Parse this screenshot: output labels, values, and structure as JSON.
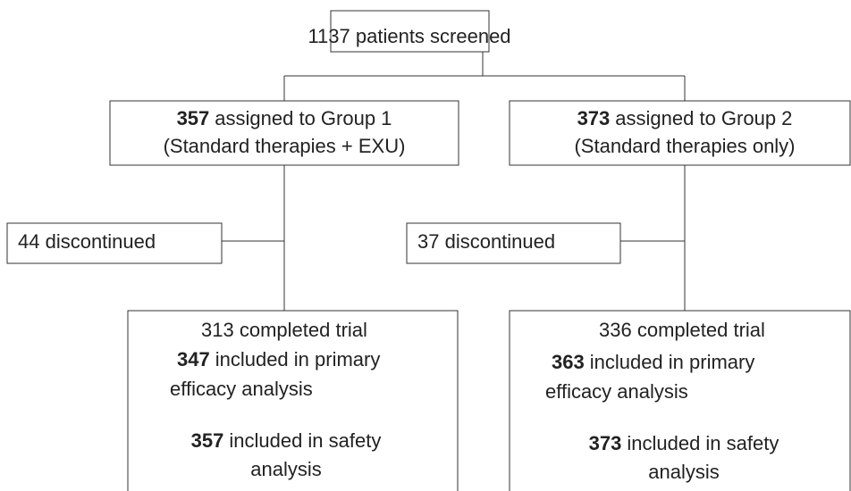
{
  "nodes": [
    {
      "label": "1137 patients screened"
    },
    {
      "lines": [
        {
          "bold": "357",
          "text": "assigned to Group 1"
        },
        {
          "text": "(Standard therapies + EXU)"
        }
      ]
    },
    {
      "lines": [
        {
          "bold": "373",
          "text": "assigned to Group 2"
        },
        {
          "text": "(Standard therapies only)"
        }
      ]
    },
    {
      "label": "44 discontinued"
    },
    {
      "label": "37 discontinued"
    },
    {
      "lines": [
        {
          "text": "313 completed trial"
        },
        {
          "bold": "347",
          "text": "included in primary"
        },
        {
          "text": "efficacy analysis"
        },
        {
          "bold": "357",
          "text": "included in safety"
        },
        {
          "text": "analysis"
        }
      ]
    },
    {
      "lines": [
        {
          "text": "336 completed trial"
        },
        {
          "bold": "363",
          "text": "included in primary"
        },
        {
          "text": "efficacy analysis"
        },
        {
          "bold": "373",
          "text": "included in safety"
        },
        {
          "text": "analysis"
        }
      ]
    }
  ]
}
